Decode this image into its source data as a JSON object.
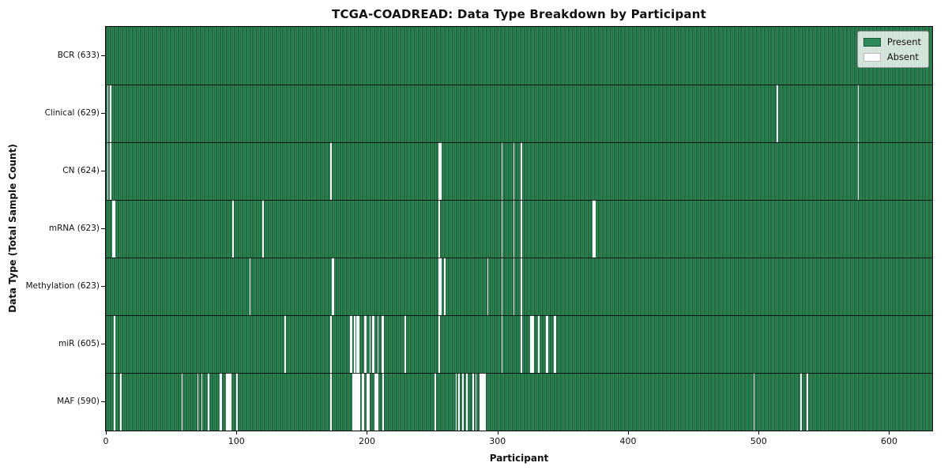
{
  "legend": {
    "entries": [
      {
        "label": "Present",
        "color": "#2e8b57",
        "edge": "#1d5c39"
      },
      {
        "label": "Absent",
        "color": "#ffffff",
        "edge": "#b9bdb9"
      }
    ]
  },
  "colors": {
    "present_green": "#2e8b57",
    "absent_white": "#fcfcfc",
    "column_edge": "rgba(0,0,0,0.5)",
    "plot_border": "#000000",
    "legend_background": "rgba(255,255,255,0.8)"
  },
  "chart_data": {
    "type": "heatmap",
    "title": "TCGA-COADREAD: Data Type Breakdown by Participant",
    "xlabel": "Participant",
    "ylabel": "Data Type (Total Sample Count)",
    "x_ticks": [
      0,
      100,
      200,
      300,
      400,
      500,
      600
    ],
    "x_range": [
      0,
      633
    ],
    "n_participants": 633,
    "grid": false,
    "legend_position": "upper right",
    "cell_states": {
      "present": 1,
      "absent": 0
    },
    "rows": [
      {
        "label": "BCR (633)",
        "data_type": "BCR",
        "present_count": 633,
        "absent_participants": []
      },
      {
        "label": "Clinical (629)",
        "data_type": "Clinical",
        "present_count": 629,
        "absent_participants": [
          1,
          3,
          514,
          576
        ]
      },
      {
        "label": "CN (624)",
        "data_type": "CN",
        "present_count": 624,
        "absent_participants": [
          1,
          3,
          172,
          255,
          256,
          303,
          312,
          318,
          576
        ]
      },
      {
        "label": "mRNA (623)",
        "data_type": "mRNA",
        "present_count": 623,
        "absent_participants": [
          5,
          6,
          97,
          120,
          255,
          303,
          312,
          318,
          373,
          374
        ]
      },
      {
        "label": "Methylation (623)",
        "data_type": "Methylation",
        "present_count": 623,
        "absent_participants": [
          110,
          173,
          174,
          255,
          256,
          259,
          292,
          303,
          312,
          318
        ]
      },
      {
        "label": "miR (605)",
        "data_type": "miR",
        "present_count": 605,
        "absent_participants": [
          6,
          137,
          172,
          187,
          188,
          190,
          192,
          193,
          198,
          199,
          202,
          204,
          205,
          208,
          211,
          212,
          229,
          255,
          303,
          318,
          325,
          326,
          327,
          331,
          337,
          338,
          343,
          344
        ]
      },
      {
        "label": "MAF (590)",
        "data_type": "MAF",
        "present_count": 590,
        "absent_participants": [
          6,
          11,
          58,
          70,
          73,
          78,
          87,
          88,
          92,
          93,
          94,
          95,
          100,
          172,
          189,
          190,
          191,
          192,
          193,
          194,
          196,
          197,
          200,
          201,
          206,
          207,
          208,
          212,
          252,
          268,
          270,
          273,
          276,
          281,
          283,
          286,
          287,
          288,
          289,
          290,
          496,
          532,
          537
        ]
      }
    ]
  }
}
